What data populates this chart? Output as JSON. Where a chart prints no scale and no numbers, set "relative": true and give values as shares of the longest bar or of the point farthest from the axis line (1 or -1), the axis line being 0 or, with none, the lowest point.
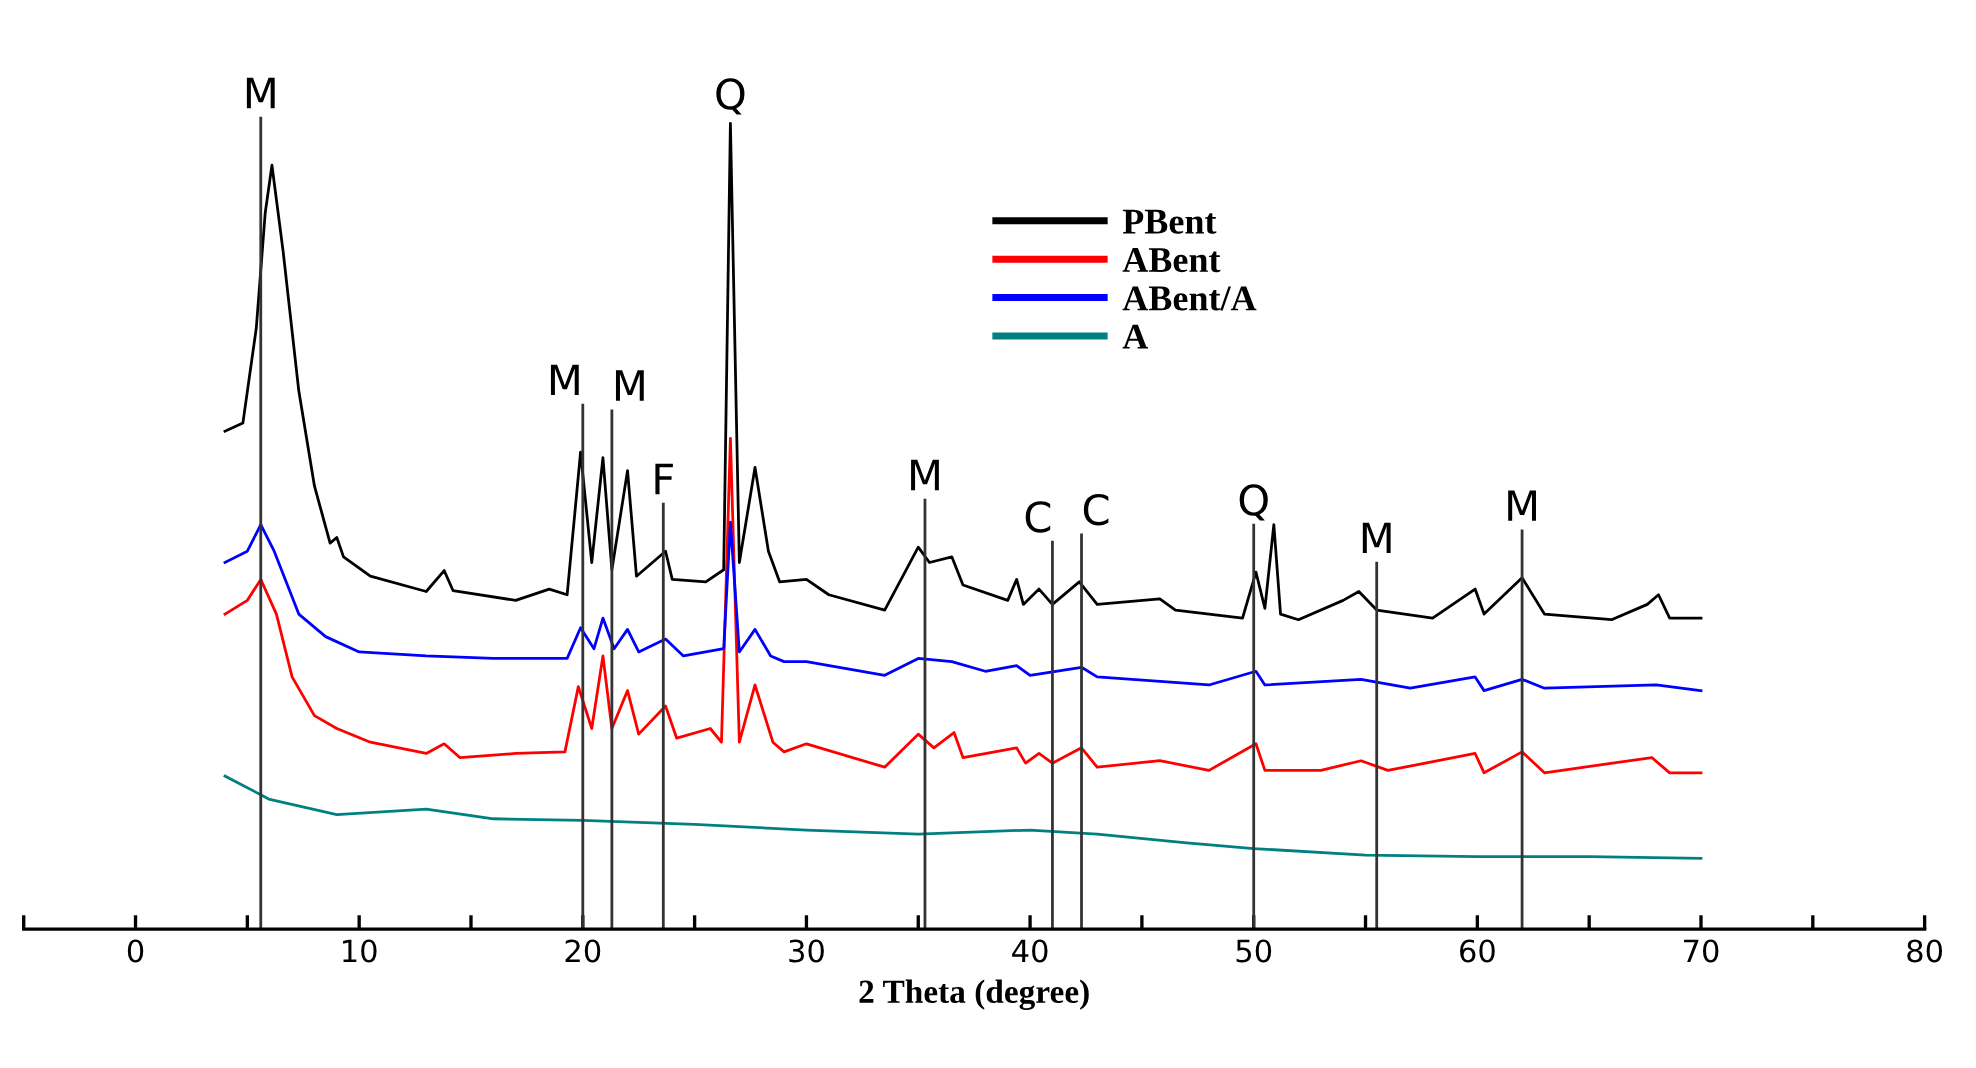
{
  "chart_data": {
    "type": "line",
    "relative": true,
    "xlabel": "2 Theta (degree)",
    "xlim": [
      -5,
      80
    ],
    "xticks": [
      {
        "value": -5,
        "label": null
      },
      0,
      {
        "value": 5,
        "label": null
      },
      10,
      {
        "value": 15,
        "label": null
      },
      20,
      {
        "value": 25,
        "label": null
      },
      30,
      {
        "value": 35,
        "label": null
      },
      40,
      {
        "value": 45,
        "label": null
      },
      50,
      {
        "value": 55,
        "label": null
      },
      60,
      {
        "value": 65,
        "label": null
      },
      70,
      {
        "value": 75,
        "label": null
      },
      80
    ],
    "legend": "top",
    "line_style": "solid",
    "marker": "none",
    "grid": false,
    "series": [
      {
        "name": "PBent",
        "color": "#000000",
        "x": [
          4.0,
          4.8,
          5.4,
          5.8,
          6.1,
          6.6,
          7.3,
          8.0,
          8.7,
          9.0,
          9.3,
          10.5,
          13,
          13.8,
          14.2,
          17,
          18.5,
          19.3,
          19.9,
          20.4,
          20.9,
          21.3,
          22.0,
          22.4,
          23.7,
          24,
          25.5,
          26.3,
          26.6,
          27.0,
          27.7,
          28.3,
          28.8,
          30,
          31,
          33.5,
          35.0,
          35.5,
          36.5,
          37,
          39.0,
          39.4,
          39.7,
          40.4,
          41,
          42.2,
          43,
          45.8,
          46.5,
          49.5,
          50.1,
          50.5,
          50.9,
          51.2,
          52,
          54,
          54.7,
          55.5,
          58,
          59.9,
          60.3,
          62.0,
          63,
          66,
          67.6,
          68.1,
          68.6,
          70
        ],
        "values": [
          0.618,
          0.628,
          0.746,
          0.889,
          0.948,
          0.841,
          0.668,
          0.55,
          0.479,
          0.486,
          0.462,
          0.438,
          0.419,
          0.445,
          0.42,
          0.408,
          0.422,
          0.415,
          0.592,
          0.455,
          0.585,
          0.446,
          0.569,
          0.438,
          0.469,
          0.434,
          0.431,
          0.446,
          1.0,
          0.455,
          0.573,
          0.469,
          0.431,
          0.434,
          0.415,
          0.396,
          0.474,
          0.455,
          0.462,
          0.427,
          0.408,
          0.434,
          0.403,
          0.422,
          0.403,
          0.431,
          0.403,
          0.41,
          0.396,
          0.386,
          0.443,
          0.398,
          0.502,
          0.391,
          0.384,
          0.408,
          0.419,
          0.396,
          0.386,
          0.422,
          0.391,
          0.436,
          0.391,
          0.384,
          0.403,
          0.415,
          0.386,
          0.386
        ]
      },
      {
        "name": "ABent",
        "color": "#ff0000",
        "x": [
          4.0,
          5.0,
          5.6,
          6.3,
          7.0,
          8.0,
          9.0,
          10.5,
          13,
          13.8,
          14.5,
          17,
          19.2,
          19.8,
          20.4,
          20.9,
          21.3,
          22.0,
          22.5,
          23.7,
          24.2,
          25.7,
          26.2,
          26.6,
          27.0,
          27.7,
          28.5,
          29,
          30,
          33.5,
          35,
          35.7,
          36.6,
          37,
          39.4,
          39.8,
          40.4,
          41,
          42.3,
          43,
          45.8,
          48,
          50.1,
          50.5,
          53,
          54.8,
          56,
          59.9,
          60.3,
          62,
          63,
          67.8,
          68.6,
          70
        ],
        "values": [
          0.391,
          0.408,
          0.434,
          0.391,
          0.313,
          0.265,
          0.249,
          0.232,
          0.218,
          0.23,
          0.213,
          0.218,
          0.22,
          0.301,
          0.249,
          0.339,
          0.249,
          0.296,
          0.242,
          0.277,
          0.237,
          0.249,
          0.232,
          0.609,
          0.232,
          0.303,
          0.232,
          0.22,
          0.23,
          0.201,
          0.242,
          0.225,
          0.244,
          0.213,
          0.225,
          0.206,
          0.218,
          0.206,
          0.225,
          0.201,
          0.209,
          0.197,
          0.23,
          0.197,
          0.197,
          0.209,
          0.197,
          0.218,
          0.194,
          0.22,
          0.194,
          0.213,
          0.194,
          0.194
        ]
      },
      {
        "name": "ABent/A",
        "color": "#0000ff",
        "x": [
          4.0,
          5.0,
          5.6,
          6.2,
          7.3,
          8.5,
          10,
          13,
          16,
          19.3,
          19.9,
          20.5,
          20.9,
          21.4,
          22.0,
          22.5,
          23.7,
          24.5,
          26.3,
          26.6,
          27.0,
          27.7,
          28.4,
          29,
          30,
          33.5,
          35,
          36.5,
          38,
          39.4,
          40,
          42.3,
          43,
          48,
          50.1,
          50.5,
          54.8,
          57,
          59.9,
          60.3,
          62,
          63,
          68,
          70
        ],
        "values": [
          0.455,
          0.469,
          0.502,
          0.469,
          0.391,
          0.363,
          0.344,
          0.339,
          0.336,
          0.336,
          0.374,
          0.348,
          0.386,
          0.348,
          0.372,
          0.344,
          0.36,
          0.339,
          0.348,
          0.505,
          0.344,
          0.372,
          0.339,
          0.332,
          0.332,
          0.315,
          0.336,
          0.332,
          0.32,
          0.327,
          0.315,
          0.325,
          0.313,
          0.303,
          0.32,
          0.303,
          0.31,
          0.299,
          0.313,
          0.296,
          0.31,
          0.299,
          0.303,
          0.296
        ]
      },
      {
        "name": "A",
        "color": "#008080",
        "x": [
          4.0,
          6,
          9,
          13,
          16,
          20,
          25,
          30,
          35,
          40,
          43,
          47,
          50,
          55,
          60,
          65,
          70
        ],
        "values": [
          0.19,
          0.161,
          0.142,
          0.149,
          0.137,
          0.135,
          0.13,
          0.123,
          0.118,
          0.123,
          0.118,
          0.107,
          0.1,
          0.092,
          0.09,
          0.09,
          0.088
        ]
      }
    ],
    "ref_lines": [
      {
        "axis": "x",
        "value": 5.6,
        "label": "M"
      },
      {
        "axis": "x",
        "value": 20.0,
        "label": "M"
      },
      {
        "axis": "x",
        "value": 21.3,
        "label": "M"
      },
      {
        "axis": "x",
        "value": 23.6,
        "label": "F"
      },
      {
        "axis": "x",
        "value": 35.3,
        "label": "M"
      },
      {
        "axis": "x",
        "value": 41.0,
        "label": "C"
      },
      {
        "axis": "x",
        "value": 42.3,
        "label": "C"
      },
      {
        "axis": "x",
        "value": 50.0,
        "label": "Q"
      },
      {
        "axis": "x",
        "value": 55.5,
        "label": "M"
      },
      {
        "axis": "x",
        "value": 62.0,
        "label": "M"
      }
    ],
    "annotations": [
      {
        "text": "Q",
        "x": 26.6,
        "y": 1.0
      }
    ]
  }
}
